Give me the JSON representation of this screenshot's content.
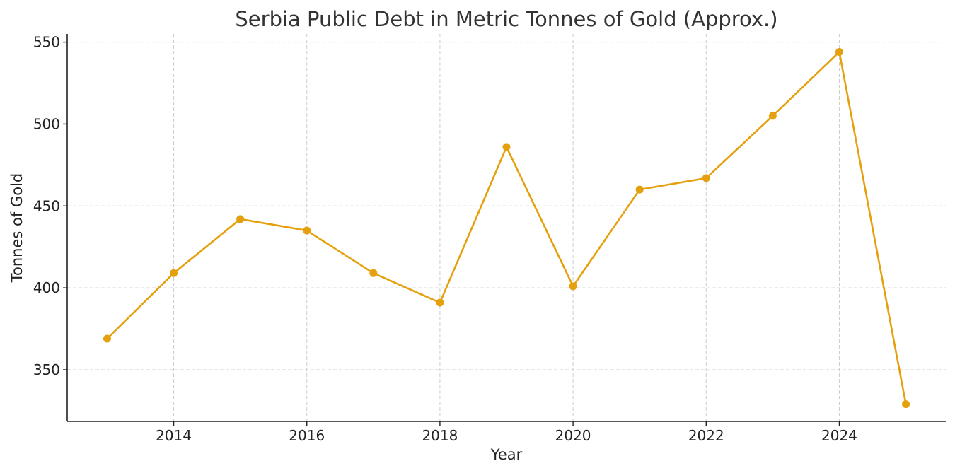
{
  "chart_data": {
    "type": "line",
    "title": "Serbia Public Debt in Metric Tonnes of Gold (Approx.)",
    "xlabel": "Year",
    "ylabel": "Tonnes of Gold",
    "x": [
      2013,
      2014,
      2015,
      2016,
      2017,
      2018,
      2019,
      2020,
      2021,
      2022,
      2023,
      2024,
      2025
    ],
    "series": [
      {
        "values": [
          369,
          409,
          442,
          435,
          409,
          391,
          486,
          401,
          460,
          467,
          505,
          544,
          329
        ],
        "color": "#e5a00d",
        "marker": "circle"
      }
    ],
    "xlim": [
      2012.4,
      2025.6
    ],
    "ylim": [
      318.5,
      555
    ],
    "xticks": [
      "2014",
      "2016",
      "2018",
      "2020",
      "2022",
      "2024"
    ],
    "yticks": [
      "350",
      "400",
      "450",
      "500",
      "550"
    ],
    "grid": true
  }
}
